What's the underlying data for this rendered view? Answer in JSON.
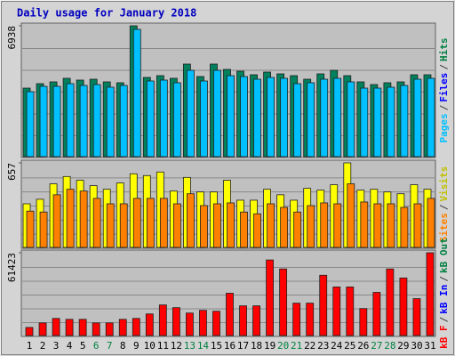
{
  "title": "Daily usage for January 2018",
  "weekend_color": "#008040",
  "weekends": [
    5,
    6,
    12,
    13,
    19,
    20,
    26,
    27
  ],
  "chart_data": [
    {
      "type": "bar",
      "ylim": [
        0,
        6938
      ],
      "yticks": [
        6938
      ],
      "legend": [
        {
          "text": "Pages",
          "color": "#00c0ff"
        },
        {
          "text": "/",
          "color": "#404040"
        },
        {
          "text": "Files",
          "color": "#0000ff"
        },
        {
          "text": "/",
          "color": "#404040"
        },
        {
          "text": "Hits",
          "color": "#008040"
        }
      ],
      "series": [
        {
          "name": "Hits",
          "color": "#00805c",
          "values": [
            3634,
            3870,
            3965,
            4154,
            4059,
            4106,
            3965,
            3918,
            6938,
            4201,
            4295,
            4154,
            4909,
            4248,
            4909,
            4626,
            4531,
            4342,
            4484,
            4390,
            4295,
            4106,
            4390,
            4578,
            4295,
            3965,
            3823,
            3918,
            3965,
            4342,
            4342
          ]
        },
        {
          "name": "Files",
          "color": "#00c0ff",
          "values": [
            3446,
            3729,
            3729,
            3870,
            3776,
            3823,
            3682,
            3776,
            6750,
            4012,
            4059,
            3918,
            4578,
            4012,
            4578,
            4295,
            4248,
            4106,
            4201,
            4154,
            3870,
            3918,
            4106,
            4154,
            3965,
            3634,
            3634,
            3682,
            3776,
            4106,
            4154
          ]
        }
      ]
    },
    {
      "type": "bar",
      "ylim": [
        0,
        657
      ],
      "yticks": [
        657
      ],
      "legend": [
        {
          "text": "Sites",
          "color": "#ff8000"
        },
        {
          "text": "/",
          "color": "#404040"
        },
        {
          "text": "Visits",
          "color": "#c0c000"
        }
      ],
      "series": [
        {
          "name": "Visits",
          "color": "#ffff00",
          "values": [
            339,
            374,
            494,
            551,
            522,
            480,
            452,
            501,
            572,
            558,
            586,
            438,
            544,
            431,
            431,
            522,
            367,
            367,
            452,
            409,
            367,
            459,
            445,
            487,
            657,
            445,
            452,
            431,
            417,
            487,
            452
          ]
        },
        {
          "name": "Sites",
          "color": "#ff8000",
          "values": [
            282,
            275,
            409,
            452,
            438,
            381,
            339,
            339,
            381,
            381,
            381,
            339,
            417,
            325,
            339,
            346,
            275,
            261,
            339,
            311,
            275,
            325,
            346,
            339,
            494,
            353,
            339,
            339,
            311,
            339,
            381
          ]
        }
      ]
    },
    {
      "type": "bar",
      "ylim": [
        0,
        61423
      ],
      "yticks": [
        61423
      ],
      "legend": [
        {
          "text": "kB F",
          "color": "#ff0000"
        },
        {
          "text": "/",
          "color": "#404040"
        },
        {
          "text": "kB In",
          "color": "#0000ff"
        },
        {
          "text": "/",
          "color": "#404040"
        },
        {
          "text": "kB Out",
          "color": "#008040"
        }
      ],
      "categories": [
        "1",
        "2",
        "3",
        "4",
        "5",
        "6",
        "7",
        "8",
        "9",
        "10",
        "11",
        "12",
        "13",
        "14",
        "15",
        "16",
        "17",
        "18",
        "19",
        "20",
        "21",
        "22",
        "23",
        "24",
        "25",
        "26",
        "27",
        "28",
        "29",
        "30",
        "31"
      ],
      "series": [
        {
          "name": "kB F",
          "color": "#ff0000",
          "values": [
            6008,
            9346,
            12684,
            12017,
            12017,
            9346,
            9346,
            12017,
            12684,
            16022,
            22698,
            20696,
            16690,
            18693,
            18025,
            31377,
            22031,
            22031,
            56078,
            49402,
            24034,
            24034,
            44729,
            36050,
            36050,
            20028,
            32045,
            49402,
            42726,
            27372,
            61423
          ]
        }
      ]
    }
  ]
}
